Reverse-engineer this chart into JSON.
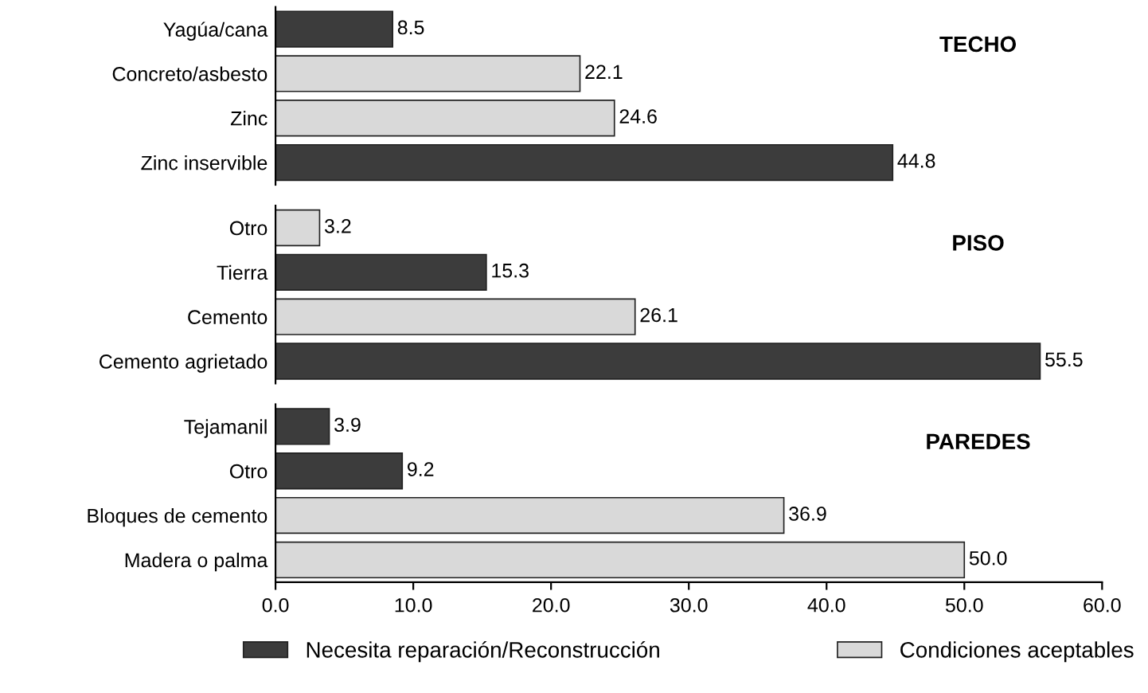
{
  "chart_data": [
    {
      "type": "bar",
      "orientation": "horizontal",
      "stacked": true,
      "annotations": [
        "TECHO"
      ],
      "categories": [
        "Yagúa/cana",
        "Concreto/asbesto",
        "Zinc",
        "Zinc inservible"
      ],
      "xlim": [
        0,
        60
      ],
      "tick_labels": "y",
      "series": [
        {
          "color": "#3c3c3c",
          "values": [
            8.5,
            null,
            null,
            44.8
          ],
          "value_labels": [
            "8.5",
            null,
            null,
            "44.8"
          ]
        },
        {
          "color": "#d9d9d9",
          "values": [
            null,
            22.1,
            24.6,
            null
          ],
          "value_labels": [
            null,
            "22.1",
            "24.6",
            null
          ]
        }
      ]
    },
    {
      "type": "bar",
      "orientation": "horizontal",
      "stacked": true,
      "annotations": [
        "PISO"
      ],
      "categories": [
        "Otro",
        "Tierra",
        "Cemento",
        "Cemento agrietado"
      ],
      "xlim": [
        0,
        60
      ],
      "tick_labels": "y",
      "series": [
        {
          "color": "#3c3c3c",
          "values": [
            null,
            15.3,
            null,
            55.5
          ],
          "value_labels": [
            null,
            "15.3",
            null,
            "55.5"
          ]
        },
        {
          "color": "#d9d9d9",
          "values": [
            3.2,
            null,
            26.1,
            null
          ],
          "value_labels": [
            "3.2",
            null,
            "26.1",
            null
          ]
        }
      ]
    },
    {
      "type": "bar",
      "orientation": "horizontal",
      "stacked": true,
      "annotations": [
        "PAREDES"
      ],
      "categories": [
        "Tejamanil",
        "Otro",
        "Bloques de cemento",
        "Madera o palma"
      ],
      "xlim": [
        0,
        60
      ],
      "xticks": [
        {
          "value": 0,
          "label": "0.0"
        },
        {
          "value": 10,
          "label": "10.0"
        },
        {
          "value": 20,
          "label": "20.0"
        },
        {
          "value": 30,
          "label": "30.0"
        },
        {
          "value": 40,
          "label": "40.0"
        },
        {
          "value": 50,
          "label": "50.0"
        },
        {
          "value": 60,
          "label": "60.0"
        }
      ],
      "legend": "bottom",
      "series": [
        {
          "name": "Necesita reparación/Reconstrucción",
          "color": "#3c3c3c",
          "values": [
            3.9,
            9.2,
            null,
            null
          ],
          "value_labels": [
            "3.9",
            "9.2",
            null,
            null
          ]
        },
        {
          "name": "Condiciones aceptables",
          "color": "#d9d9d9",
          "values": [
            null,
            null,
            36.9,
            50.0
          ],
          "value_labels": [
            null,
            null,
            "36.9",
            "50.0"
          ]
        }
      ]
    }
  ]
}
